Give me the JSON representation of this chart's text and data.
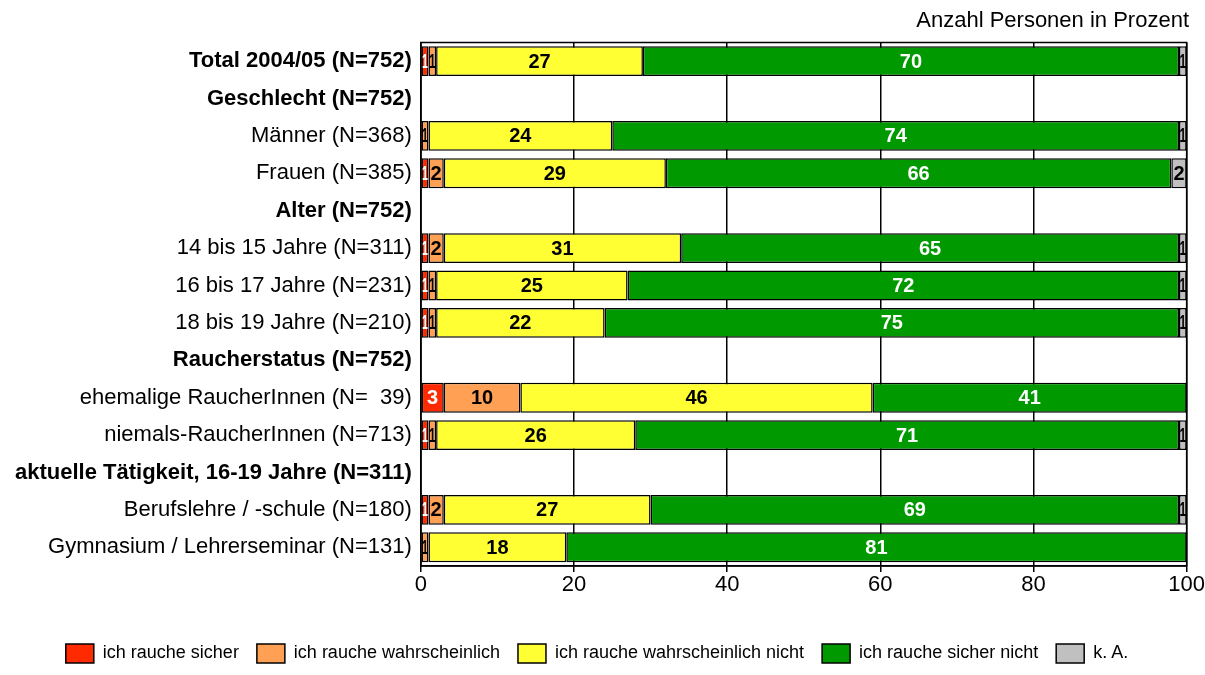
{
  "chart_data": {
    "type": "bar",
    "orientation": "horizontal",
    "stacked": true,
    "xlabel": "Anzahl Personen in Prozent",
    "categories": [
      "Total 2004/05 (N=752)",
      "Geschlecht (N=752)",
      "Männer (N=368)",
      "Frauen (N=385)",
      "Alter (N=752)",
      "14 bis 15 Jahre (N=311)",
      "16 bis 17 Jahre (N=231)",
      "18 bis 19 Jahre (N=210)",
      "Raucherstatus (N=752)",
      "ehemalige RaucherInnen (N=  39)",
      "niemals-RaucherInnen (N=713)",
      "aktuelle Tätigkeit, 16-19 Jahre (N=311)",
      "Berufslehre / -schule (N=180)",
      "Gymnasium / Lehrerseminar (N=131)"
    ],
    "series": [
      {
        "name": "ich rauche sicher",
        "color": "#ff2a00",
        "values": [
          1,
          null,
          null,
          1,
          null,
          1,
          1,
          1,
          null,
          3,
          1,
          null,
          1,
          null
        ]
      },
      {
        "name": "ich rauche wahrscheinlich",
        "color": "#ffa055",
        "values": [
          1,
          null,
          1,
          2,
          null,
          2,
          1,
          1,
          null,
          10,
          1,
          null,
          2,
          1
        ]
      },
      {
        "name": "ich rauche wahrscheinlich nicht",
        "color": "#ffff33",
        "values": [
          27,
          null,
          24,
          29,
          null,
          31,
          25,
          22,
          null,
          46,
          26,
          null,
          27,
          18
        ]
      },
      {
        "name": "ich rauche sicher nicht",
        "color": "#009900",
        "values": [
          70,
          null,
          74,
          66,
          null,
          65,
          72,
          75,
          null,
          41,
          71,
          null,
          69,
          81
        ]
      },
      {
        "name": "k. A.",
        "color": "#c0c0c0",
        "values": [
          1,
          null,
          1,
          2,
          null,
          1,
          1,
          1,
          null,
          null,
          1,
          null,
          1,
          null
        ]
      }
    ],
    "xlim": [
      0,
      100
    ],
    "xticks": [
      0,
      20,
      40,
      60,
      80,
      100
    ],
    "grid": "x",
    "legend": "bottom",
    "data_labels": true
  }
}
